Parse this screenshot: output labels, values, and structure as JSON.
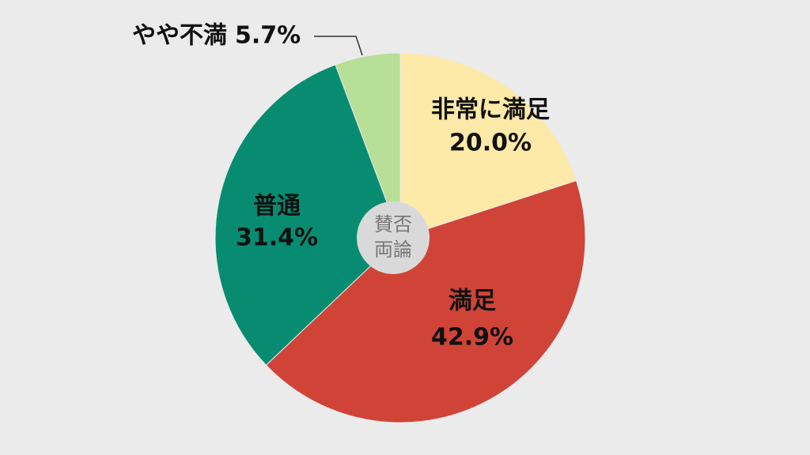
{
  "chart_data": {
    "type": "pie",
    "categories": [
      "非常に満足",
      "満足",
      "普通",
      "やや不満"
    ],
    "values": [
      20.0,
      42.9,
      31.4,
      5.7
    ],
    "value_labels": [
      "20.0%",
      "42.9%",
      "31.4%",
      "5.7%"
    ],
    "colors": [
      "#fde9a8",
      "#d04437",
      "#078c72",
      "#b7df97"
    ],
    "center_label": [
      "賛否",
      "両論"
    ]
  }
}
